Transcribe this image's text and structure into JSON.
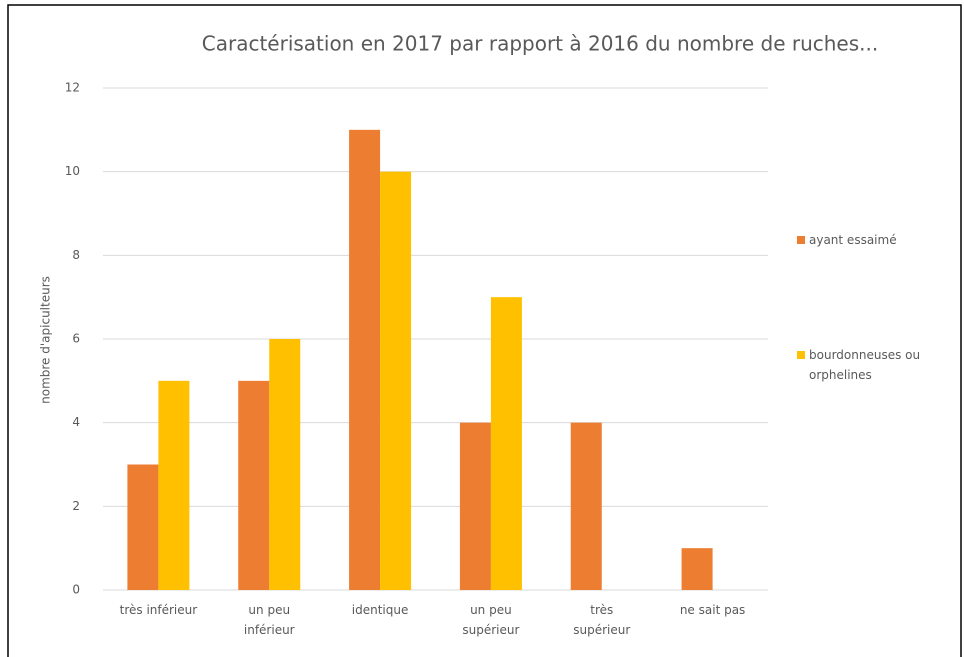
{
  "chart_data": {
    "type": "bar",
    "title": "Caractérisation en 2017 par rapport à 2016 du nombre de ruches...",
    "y_label": "nombre d'apiculteurs",
    "categories": [
      "très inférieur",
      "un peu\ninférieur",
      "identique",
      "un peu\nsupérieur",
      "très\nsupérieur",
      "ne sait pas"
    ],
    "series": [
      {
        "name": "ayant essaimé",
        "color": "#ed7d31",
        "values": [
          3,
          5,
          11,
          4,
          4,
          1
        ]
      },
      {
        "name": "bourdonneuses ou\norphelines",
        "color": "#ffc000",
        "values": [
          5,
          6,
          10,
          7,
          0,
          0
        ]
      }
    ],
    "ylim": [
      0,
      12
    ],
    "yticks": [
      0,
      2,
      4,
      6,
      8,
      10,
      12
    ],
    "grid": true,
    "legend": "right"
  }
}
